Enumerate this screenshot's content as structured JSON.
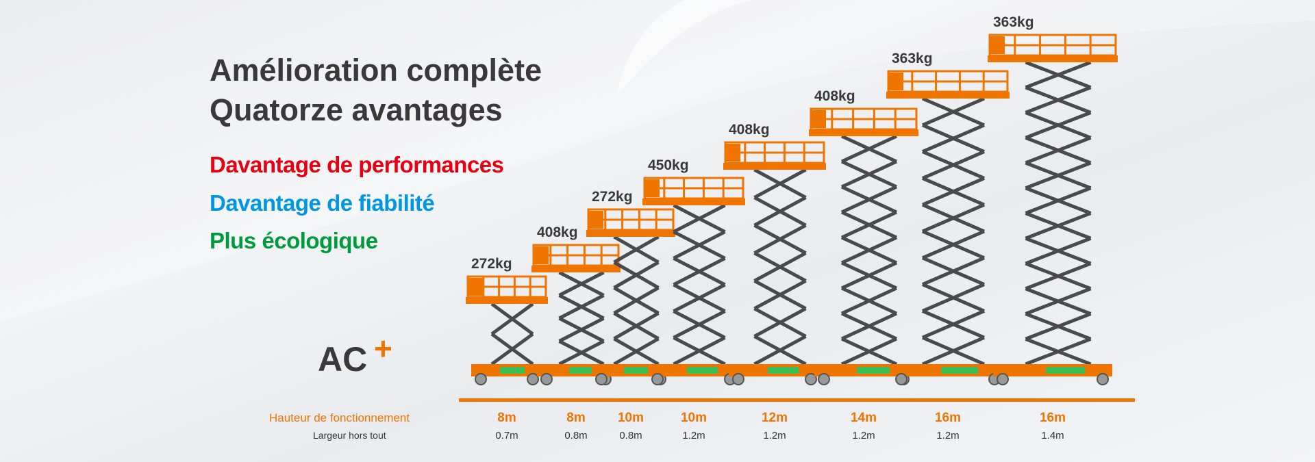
{
  "headline": {
    "line1": "Amélioration complète",
    "line2": "Quatorze avantages"
  },
  "advantages": [
    {
      "label": "Davantage de performances",
      "color": "#e60012"
    },
    {
      "label": "Davantage de fiabilité",
      "color": "#0097e0"
    },
    {
      "label": "Plus écologique",
      "color": "#009a3e"
    }
  ],
  "logo": {
    "text": "AC",
    "plus": "+"
  },
  "specs": {
    "height_label": "Hauteur de fonctionnement",
    "width_label": "Largeur hors tout"
  },
  "lifts": [
    {
      "capacity": "272kg",
      "height": "8m",
      "width": "0.7m"
    },
    {
      "capacity": "408kg",
      "height": "8m",
      "width": "0.8m"
    },
    {
      "capacity": "272kg",
      "height": "10m",
      "width": "0.8m"
    },
    {
      "capacity": "450kg",
      "height": "10m",
      "width": "1.2m"
    },
    {
      "capacity": "408kg",
      "height": "12m",
      "width": "1.2m"
    },
    {
      "capacity": "408kg",
      "height": "14m",
      "width": "1.2m"
    },
    {
      "capacity": "363kg",
      "height": "16m",
      "width": "1.2m"
    },
    {
      "capacity": "363kg",
      "height": "16m",
      "width": "1.4m"
    }
  ],
  "colors": {
    "accent": "#f07400",
    "scissor": "#4a4a4c",
    "base_green": "#3cc05a"
  }
}
